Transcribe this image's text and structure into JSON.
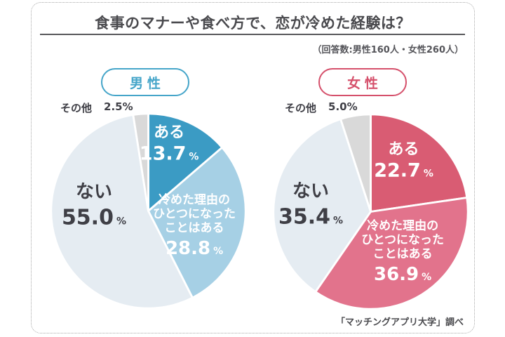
{
  "header": {
    "title": "食事のマナーや食べ方で、恋が冷めた経験は？",
    "respondents": "（回答数:男性160人・女性260人）"
  },
  "footer": {
    "source": "「マッチングアプリ大学」調べ"
  },
  "charts": [
    {
      "badge": "男性",
      "accent_color": "#45a5c9",
      "other_label": "その他",
      "other_value": "2.5%",
      "yes": {
        "name": "ある",
        "num": "13.7",
        "unit": "%"
      },
      "partly": {
        "line1": "冷めた理由の",
        "line2": "ひとつになった",
        "line3": "ことはある",
        "num": "28.8",
        "unit": "%"
      },
      "no": {
        "name": "ない",
        "num": "55.0",
        "unit": "%"
      }
    },
    {
      "badge": "女性",
      "accent_color": "#d5506b",
      "other_label": "その他",
      "other_value": "5.0%",
      "yes": {
        "name": "ある",
        "num": "22.7",
        "unit": "%"
      },
      "partly": {
        "line1": "冷めた理由の",
        "line2": "ひとつになった",
        "line3": "ことはある",
        "num": "36.9",
        "unit": "%"
      },
      "no": {
        "name": "ない",
        "num": "35.4",
        "unit": "%"
      }
    }
  ],
  "chart_data": [
    {
      "type": "pie",
      "title": "男性",
      "labels": [
        "ある",
        "冷めた理由のひとつになったことはある",
        "ない",
        "その他"
      ],
      "values": [
        13.7,
        28.8,
        55.0,
        2.5
      ],
      "colors": [
        "#3b9bc4",
        "#a6d0e5",
        "#e5ecf2",
        "#d9d9d9"
      ],
      "unit": "%",
      "start_angle_deg": 0,
      "direction": "clockwise"
    },
    {
      "type": "pie",
      "title": "女性",
      "labels": [
        "ある",
        "冷めた理由のひとつになったことはある",
        "ない",
        "その他"
      ],
      "values": [
        22.7,
        36.9,
        35.4,
        5.0
      ],
      "colors": [
        "#d95c73",
        "#e2738c",
        "#e5ecf2",
        "#d9d9d9"
      ],
      "unit": "%",
      "start_angle_deg": 0,
      "direction": "clockwise"
    }
  ]
}
